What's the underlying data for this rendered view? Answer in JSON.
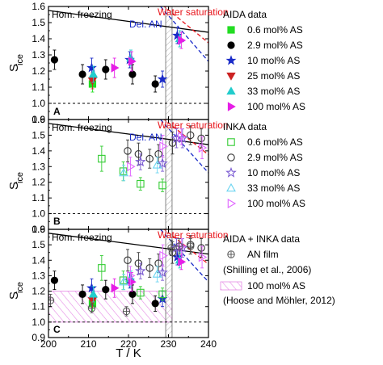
{
  "xaxis": {
    "label": "T / K",
    "lim": [
      200,
      240
    ],
    "ticks": [
      "200",
      "210",
      "220",
      "230",
      "240"
    ]
  },
  "yaxis": {
    "label_main": "S",
    "label_sub": "ice",
    "lim": [
      0.9,
      1.6
    ],
    "ticks": [
      "0.9",
      "1.0",
      "1.1",
      "1.2",
      "1.3",
      "1.4",
      "1.5",
      "1.6"
    ]
  },
  "colors": {
    "hom": "#000000",
    "water": "#e8141b",
    "delan": "#1a2bc8",
    "c06": "#22dd22",
    "c29": "#000000",
    "c10": "#1a2bc8",
    "c25": "#cc2222",
    "c33": "#22cccc",
    "c100": "#e61ee6",
    "inka06": "#33cc33",
    "inka29": "#333333",
    "inka10": "#7a5ad2",
    "inka33": "#6ad4f0",
    "inka100": "#e066ff",
    "film": "#555555",
    "hatch": "#e589e5"
  },
  "panels": [
    {
      "letter": "A",
      "labels": {
        "hom": "Hom. freezing",
        "water": "Water saturation",
        "delan": "Del. AN"
      },
      "legend": {
        "title": "AIDA data",
        "items": [
          {
            "label": "0.6 mol% AS",
            "marker": "square",
            "color": "#22dd22"
          },
          {
            "label": "2.9 mol% AS",
            "marker": "circle",
            "color": "#000000"
          },
          {
            "label": "10 mol% AS",
            "marker": "star",
            "color": "#1a2bc8"
          },
          {
            "label": "25 mol% AS",
            "marker": "tri-down",
            "color": "#cc2222"
          },
          {
            "label": "33 mol% AS",
            "marker": "tri-up",
            "color": "#22cccc"
          },
          {
            "label": "100 mol% AS",
            "marker": "tri-right",
            "color": "#e61ee6"
          }
        ]
      }
    },
    {
      "letter": "B",
      "labels": {
        "hom": "Hom. freezing",
        "water": "Water saturation",
        "delan": "Del. AN"
      },
      "legend": {
        "title": "INKA data",
        "items": [
          {
            "label": "0.6 mol% AS",
            "marker": "square-open",
            "color": "#33cc33"
          },
          {
            "label": "2.9 mol% AS",
            "marker": "circle-open",
            "color": "#333333"
          },
          {
            "label": "10 mol% AS",
            "marker": "star-open",
            "color": "#7a5ad2"
          },
          {
            "label": "33 mol% AS",
            "marker": "tri-up-open",
            "color": "#6ad4f0"
          },
          {
            "label": "100 mol% AS",
            "marker": "tri-right-open",
            "color": "#e066ff"
          }
        ]
      }
    },
    {
      "letter": "C",
      "labels": {
        "hom": "Hom. freezing",
        "water": "Water saturation",
        "delan": ""
      },
      "legend": {
        "title": "AIDA + INKA data",
        "items": [
          {
            "label": "AN film",
            "marker": "circle-plus",
            "color": "#555555",
            "sub": "(Shilling et al., 2006)"
          },
          {
            "label": "100 mol% AS",
            "marker": "hatch-box",
            "color": "#e589e5",
            "sub": "(Hoose and Möhler, 2012)"
          }
        ]
      }
    }
  ],
  "chart_data": {
    "type": "scatter",
    "xlabel": "T / K",
    "ylabel": "S_ice",
    "xlim": [
      200,
      240
    ],
    "ylim": [
      0.9,
      1.6
    ],
    "lines": {
      "hom_freezing": [
        [
          200,
          1.575
        ],
        [
          240,
          1.44
        ]
      ],
      "water_saturation": [
        [
          226,
          1.66
        ],
        [
          240,
          1.375
        ]
      ],
      "water_saturation_extrapolated": [
        [
          233.7,
          1.505
        ],
        [
          240,
          1.375
        ]
      ],
      "del_an": [
        [
          228,
          1.6
        ],
        [
          240,
          1.26
        ]
      ]
    },
    "deliquescence_band": {
      "xmin": 229.3,
      "xmax": 230.9,
      "ymin": 0.9,
      "ymax": 1.6
    },
    "film_hatch": {
      "xmin": 200,
      "xmax": 230.9,
      "ymin": 1.0,
      "ymax": 1.2
    },
    "panel_a": [
      {
        "series": "0.6 mol% AS",
        "x": 211,
        "y": 1.12,
        "err": 0.05
      },
      {
        "series": "2.9 mol% AS",
        "x": 201.5,
        "y": 1.27,
        "err": 0.06
      },
      {
        "series": "2.9 mol% AS",
        "x": 208.5,
        "y": 1.18,
        "err": 0.06
      },
      {
        "series": "2.9 mol% AS",
        "x": 214.3,
        "y": 1.21,
        "err": 0.06
      },
      {
        "series": "2.9 mol% AS",
        "x": 221,
        "y": 1.18,
        "err": 0.06
      },
      {
        "series": "2.9 mol% AS",
        "x": 226.7,
        "y": 1.12,
        "err": 0.05
      },
      {
        "series": "10 mol% AS",
        "x": 210.8,
        "y": 1.22,
        "err": 0.06
      },
      {
        "series": "10 mol% AS",
        "x": 220.3,
        "y": 1.27,
        "err": 0.05
      },
      {
        "series": "10 mol% AS",
        "x": 228.5,
        "y": 1.15,
        "err": 0.05
      },
      {
        "series": "10 mol% AS",
        "x": 232.2,
        "y": 1.42,
        "err": 0.05
      },
      {
        "series": "25 mol% AS",
        "x": 211,
        "y": 1.14,
        "err": 0.05
      },
      {
        "series": "33 mol% AS",
        "x": 211.2,
        "y": 1.18,
        "err": 0.05
      },
      {
        "series": "33 mol% AS",
        "x": 220.6,
        "y": 1.28,
        "err": 0.05
      },
      {
        "series": "33 mol% AS",
        "x": 232.8,
        "y": 1.4,
        "err": 0.05
      },
      {
        "series": "100 mol% AS",
        "x": 216.5,
        "y": 1.22,
        "err": 0.06
      },
      {
        "series": "100 mol% AS",
        "x": 220.8,
        "y": 1.26,
        "err": 0.06
      },
      {
        "series": "100 mol% AS",
        "x": 233.2,
        "y": 1.39,
        "err": 0.05
      }
    ],
    "panel_b": [
      {
        "series": "0.6 mol% AS",
        "x": 213.3,
        "y": 1.35,
        "err": 0.08
      },
      {
        "series": "0.6 mol% AS",
        "x": 218.7,
        "y": 1.27,
        "err": 0.06
      },
      {
        "series": "0.6 mol% AS",
        "x": 223,
        "y": 1.19,
        "err": 0.04
      },
      {
        "series": "0.6 mol% AS",
        "x": 228.5,
        "y": 1.18,
        "err": 0.04
      },
      {
        "series": "2.9 mol% AS",
        "x": 219.8,
        "y": 1.4,
        "err": 0.07
      },
      {
        "series": "2.9 mol% AS",
        "x": 222.5,
        "y": 1.38,
        "err": 0.07
      },
      {
        "series": "2.9 mol% AS",
        "x": 225.3,
        "y": 1.35,
        "err": 0.06
      },
      {
        "series": "2.9 mol% AS",
        "x": 227.5,
        "y": 1.38,
        "err": 0.06
      },
      {
        "series": "2.9 mol% AS",
        "x": 231,
        "y": 1.45,
        "err": 0.07
      },
      {
        "series": "2.9 mol% AS",
        "x": 235.5,
        "y": 1.5,
        "err": 0.06
      },
      {
        "series": "2.9 mol% AS",
        "x": 238.2,
        "y": 1.48,
        "err": 0.06
      },
      {
        "series": "10 mol% AS",
        "x": 223,
        "y": 1.33,
        "err": 0.05
      },
      {
        "series": "10 mol% AS",
        "x": 228.5,
        "y": 1.32,
        "err": 0.05
      },
      {
        "series": "10 mol% AS",
        "x": 232,
        "y": 1.48,
        "err": 0.06
      },
      {
        "series": "10 mol% AS",
        "x": 233.5,
        "y": 1.48,
        "err": 0.06
      },
      {
        "series": "33 mol% AS",
        "x": 218.8,
        "y": 1.26,
        "err": 0.05
      },
      {
        "series": "33 mol% AS",
        "x": 227.2,
        "y": 1.31,
        "err": 0.05
      },
      {
        "series": "100 mol% AS",
        "x": 220.5,
        "y": 1.3,
        "err": 0.06
      },
      {
        "series": "100 mol% AS",
        "x": 228.6,
        "y": 1.43,
        "err": 0.07
      },
      {
        "series": "100 mol% AS",
        "x": 233.2,
        "y": 1.49,
        "err": 0.05
      },
      {
        "series": "100 mol% AS",
        "x": 238.4,
        "y": 1.42,
        "err": 0.07
      }
    ],
    "panel_c": {
      "an_film": [
        {
          "x": 200.5,
          "y": 1.14,
          "err": 0.04
        },
        {
          "x": 210.8,
          "y": 1.09,
          "err": 0.03
        },
        {
          "x": 219.5,
          "y": 1.07,
          "err": 0.03
        },
        {
          "x": 230.7,
          "y": 1.48,
          "err": 0.05
        },
        {
          "x": 232.7,
          "y": 1.49,
          "err": 0.05
        },
        {
          "x": 235.5,
          "y": 1.49,
          "err": 0.05
        }
      ]
    }
  }
}
